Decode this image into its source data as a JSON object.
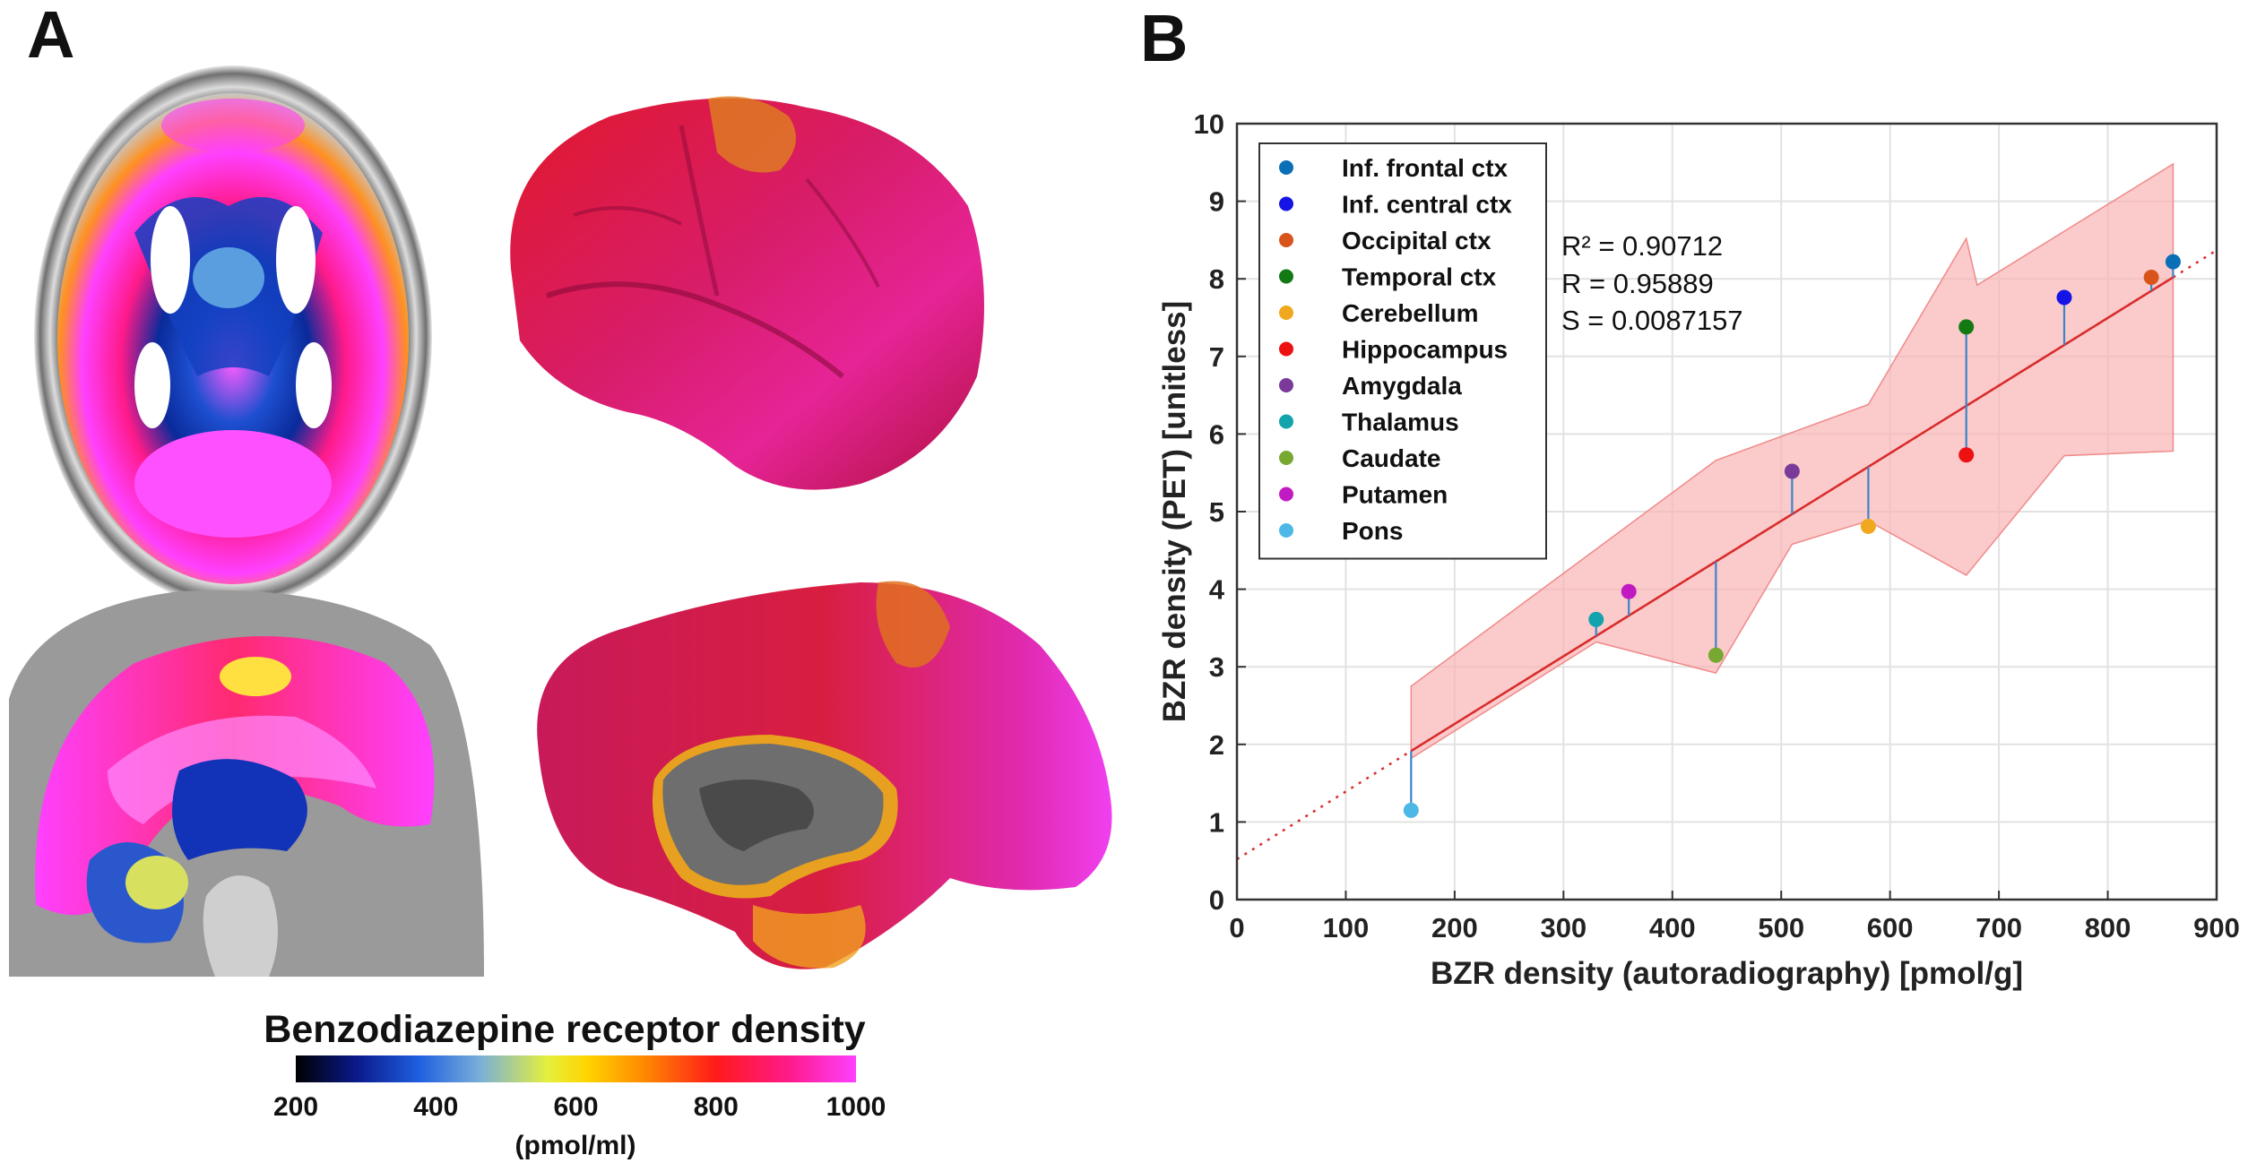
{
  "panels": {
    "left_label": "A",
    "right_label": "B"
  },
  "colorbar": {
    "title": "Benzodiazepine receptor density",
    "ticks": [
      "200",
      "400",
      "600",
      "800",
      "1000"
    ],
    "unit": "(pmol/ml)",
    "colors": [
      "#000000",
      "#0a1a8c",
      "#1f5fe0",
      "#7ab0d8",
      "#e5f03c",
      "#ffd400",
      "#ff8a00",
      "#ff1a1a",
      "#ff1a8a",
      "#ff40ff"
    ]
  },
  "chart_data": {
    "type": "scatter",
    "xlabel": "BZR density (autoradiography) [pmol/g]",
    "ylabel": "BZR density (PET) [unitless]",
    "xlim": [
      0,
      900
    ],
    "ylim": [
      0,
      10
    ],
    "xticks": [
      0,
      100,
      200,
      300,
      400,
      500,
      600,
      700,
      800,
      900
    ],
    "yticks": [
      0,
      1,
      2,
      3,
      4,
      5,
      6,
      7,
      8,
      9,
      10
    ],
    "grid": true,
    "legend_position": "top-left",
    "series": [
      {
        "name": "Inf. frontal ctx",
        "color": "#0b6fb8",
        "x": 860,
        "y": 8.22
      },
      {
        "name": "Inf. central ctx",
        "color": "#1414e6",
        "x": 760,
        "y": 7.76
      },
      {
        "name": "Occipital ctx",
        "color": "#d9541a",
        "x": 840,
        "y": 8.02
      },
      {
        "name": "Temporal ctx",
        "color": "#137a13",
        "x": 670,
        "y": 7.38
      },
      {
        "name": "Cerebellum",
        "color": "#f0a81e",
        "x": 580,
        "y": 4.81
      },
      {
        "name": "Hippocampus",
        "color": "#ee1111",
        "x": 670,
        "y": 5.73
      },
      {
        "name": "Amygdala",
        "color": "#7a3a9a",
        "x": 510,
        "y": 5.52
      },
      {
        "name": "Thalamus",
        "color": "#12a3ad",
        "x": 330,
        "y": 3.61
      },
      {
        "name": "Caudate",
        "color": "#76a832",
        "x": 440,
        "y": 3.15
      },
      {
        "name": "Putamen",
        "color": "#c21ac2",
        "x": 360,
        "y": 3.97
      },
      {
        "name": "Pons",
        "color": "#4db8e6",
        "x": 160,
        "y": 1.15
      }
    ],
    "fit": {
      "intercept": 0.52,
      "slope": 0.00872,
      "color": "#d92b2b"
    },
    "confidence_band": {
      "color": "#f9b4b4",
      "upper": [
        [
          160,
          2.75
        ],
        [
          440,
          5.66
        ],
        [
          580,
          6.38
        ],
        [
          670,
          8.52
        ],
        [
          680,
          7.92
        ],
        [
          860,
          9.48
        ]
      ],
      "lower": [
        [
          160,
          1.82
        ],
        [
          330,
          3.32
        ],
        [
          440,
          2.92
        ],
        [
          510,
          4.58
        ],
        [
          580,
          4.88
        ],
        [
          670,
          4.18
        ],
        [
          760,
          5.72
        ],
        [
          860,
          5.78
        ]
      ]
    },
    "stats": {
      "r2": "R² = 0.90712",
      "r": "R = 0.95889",
      "s": "S = 0.0087157"
    }
  }
}
